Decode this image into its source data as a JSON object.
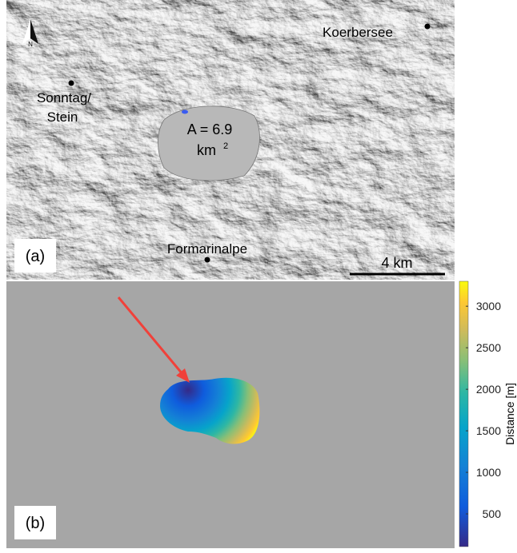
{
  "panel_a": {
    "label": "(a)",
    "north": "N",
    "places": [
      "Koerbersee",
      "Sonntag/",
      "Stein",
      "Formarinalpe"
    ],
    "area": {
      "text": "A = 6.9",
      "unit": "km",
      "exponent": "2"
    },
    "scale_bar": "4 km"
  },
  "panel_b": {
    "label": "(b)",
    "colorbar": {
      "label": "Distance [m]",
      "lim": [
        106,
        3300
      ],
      "ticks": [
        500,
        1000,
        1500,
        2000,
        2500,
        3000
      ]
    }
  }
}
